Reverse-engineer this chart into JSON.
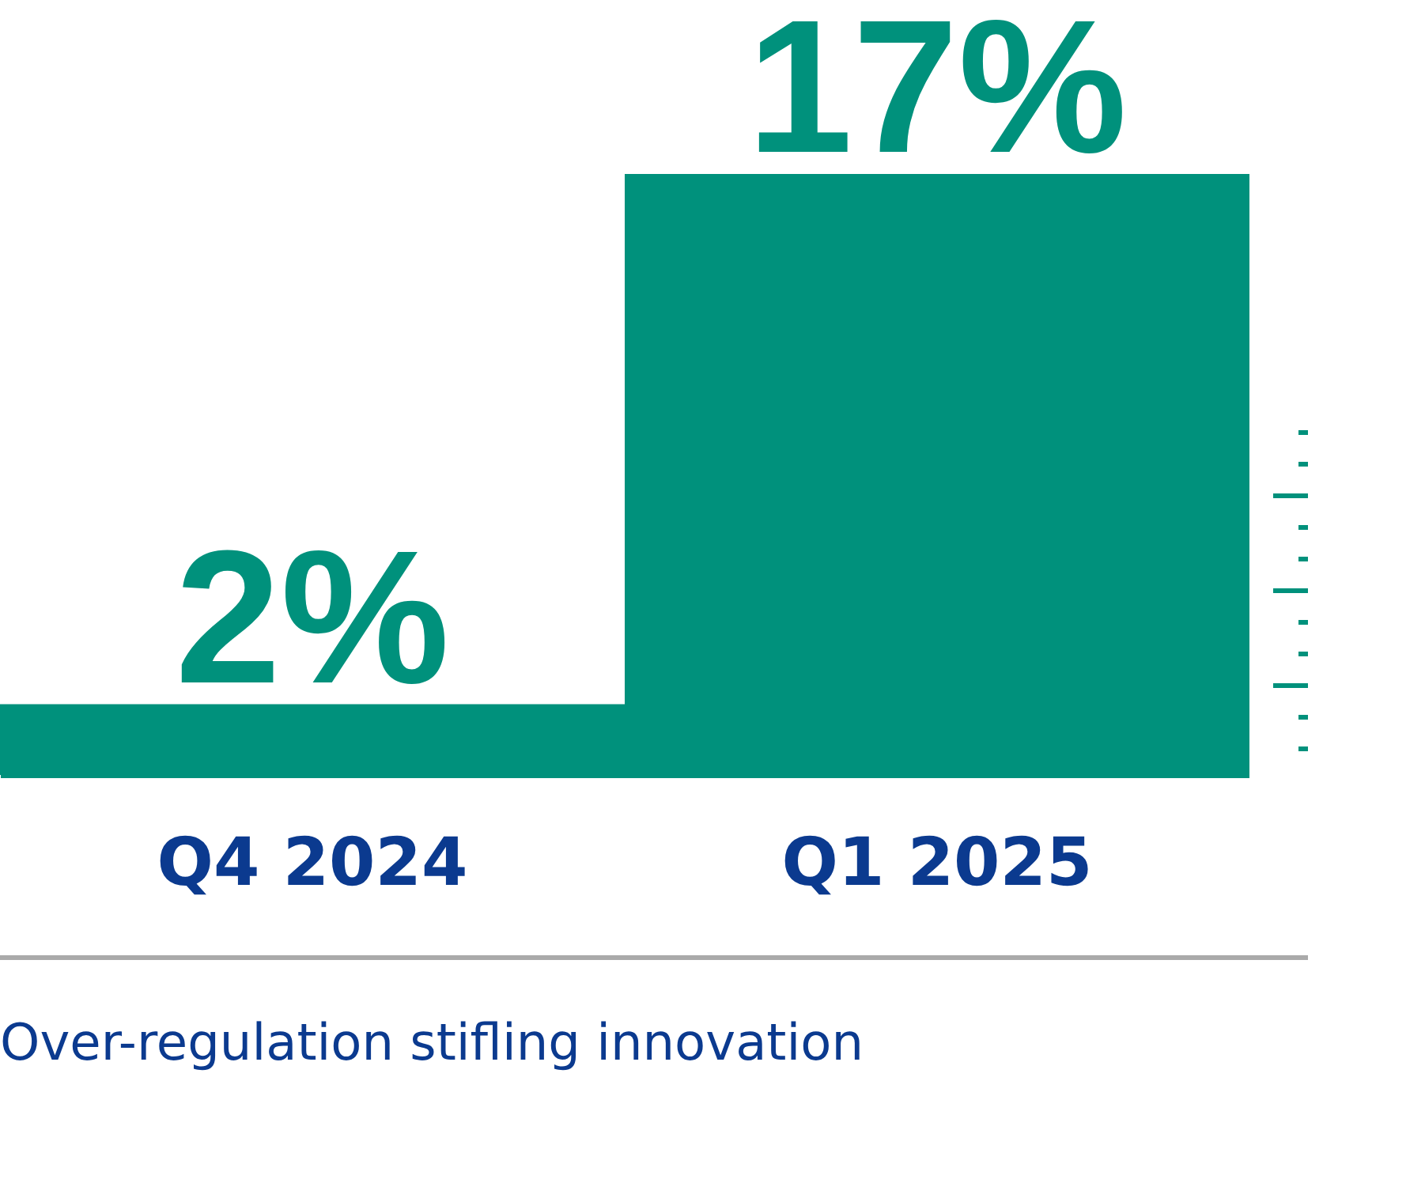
{
  "chart_data": {
    "type": "bar",
    "title": "Over-regulation stifling innovation",
    "categories": [
      "Q4 2024",
      "Q1 2025"
    ],
    "values": [
      2,
      17
    ],
    "value_labels": [
      "2%",
      "17%"
    ],
    "color": "#00917c"
  }
}
